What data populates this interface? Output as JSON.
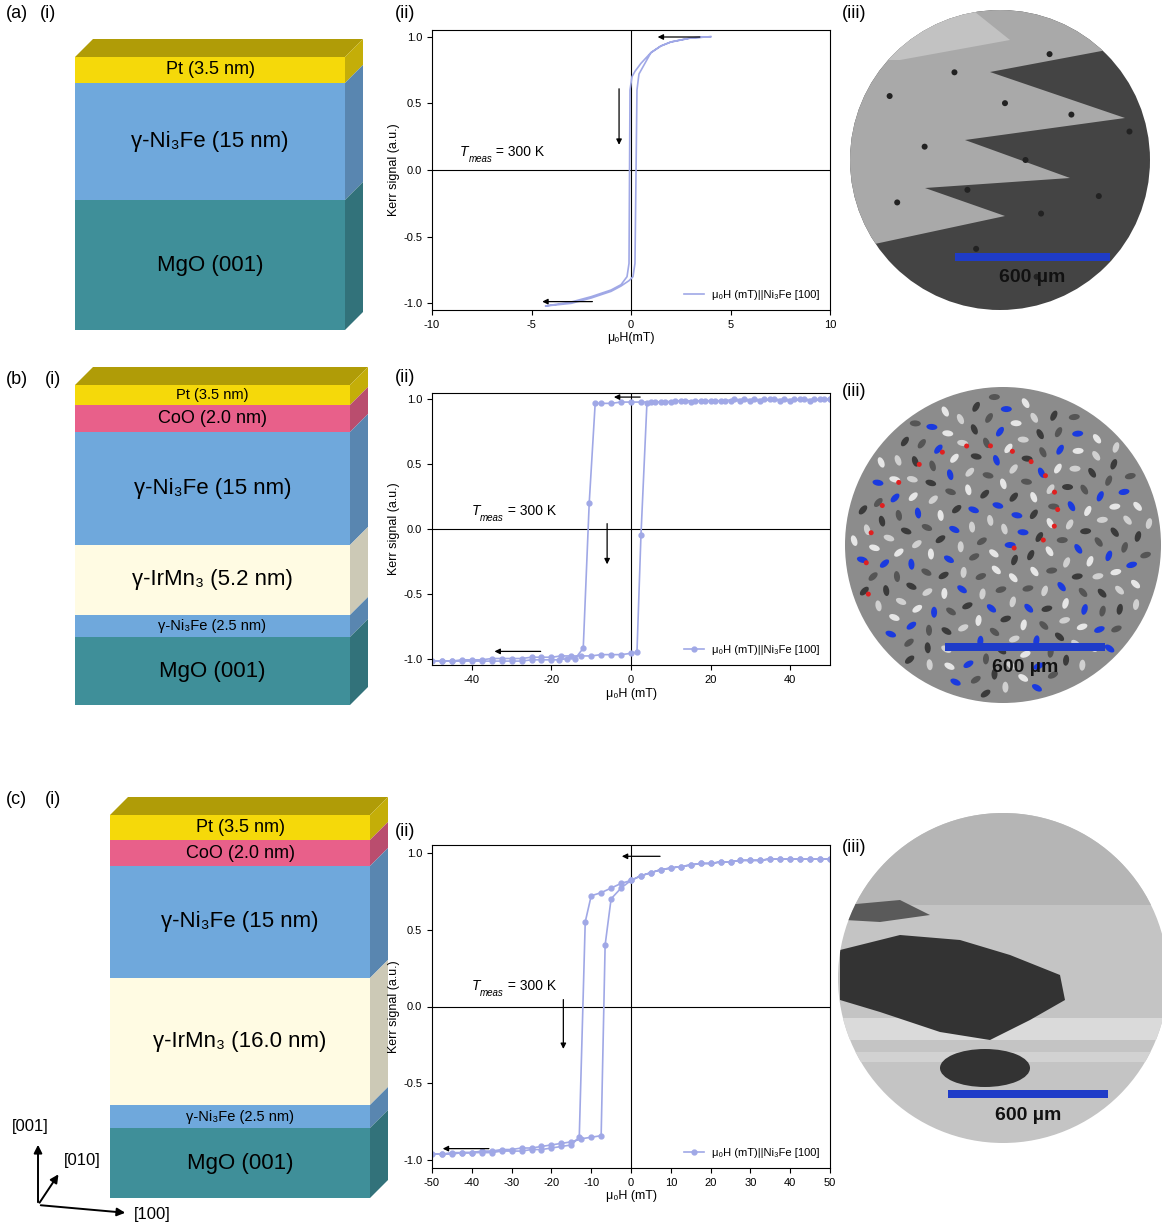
{
  "chart_data": [
    {
      "type": "line",
      "label": "(ii)",
      "x_label": "μ₀H(mT)",
      "y_label": "Kerr signal (a.u.)",
      "annotation": {
        "text": "T",
        "subscript": "meas",
        "rest": " = 300 K"
      },
      "xlim": [
        -10,
        10
      ],
      "ylim": [
        -1.05,
        1.05
      ],
      "xticks": [
        -10,
        -5,
        0,
        5,
        10
      ],
      "yticks": [
        -1.0,
        -0.5,
        0.0,
        0.5,
        1.0
      ],
      "marker": "none",
      "line_style": "solid",
      "legend": "lower right",
      "series": [
        {
          "name": "μ₀H (mT)||Ni₃Fe [100]",
          "color": "#a0a8e6",
          "x": [
            4.0,
            3.0,
            2.0,
            1.5,
            1.0,
            0.5,
            0.2,
            0.05,
            -0.05,
            -0.1,
            -0.2,
            -0.5,
            -1.0,
            -2.0,
            -3.0,
            -4.3,
            -3.0,
            -2.0,
            -1.0,
            -0.5,
            -0.1,
            0.1,
            0.2,
            0.3,
            0.4,
            0.7,
            1.0,
            1.5,
            2.0,
            3.0,
            4.0
          ],
          "values": [
            1.0,
            0.99,
            0.96,
            0.93,
            0.88,
            0.8,
            0.74,
            0.7,
            0.6,
            -0.7,
            -0.8,
            -0.86,
            -0.9,
            -0.95,
            -0.99,
            -1.02,
            -1.0,
            -0.96,
            -0.91,
            -0.87,
            -0.83,
            -0.8,
            -0.7,
            0.6,
            0.72,
            0.8,
            0.88,
            0.93,
            0.96,
            0.99,
            1.0
          ]
        }
      ]
    },
    {
      "type": "line",
      "label": "(ii)",
      "x_label": "μ₀H (mT)",
      "y_label": "Kerr signal (a.u.)",
      "annotation": {
        "text": "T",
        "subscript": "meas",
        "rest": " = 300 K"
      },
      "xlim": [
        -50,
        50
      ],
      "ylim": [
        -1.05,
        1.05
      ],
      "xticks": [
        -40,
        -20,
        0,
        20,
        40
      ],
      "yticks": [
        -1.0,
        -0.5,
        0.0,
        0.5,
        1.0
      ],
      "marker": "circle",
      "line_style": "solid",
      "legend": "lower right",
      "series": [
        {
          "name": "μ₀H (mT)||Ni₃Fe [100]",
          "color": "#a0a8e6",
          "x": [
            50,
            47.5,
            45,
            42.5,
            40,
            37.5,
            35,
            32.5,
            30,
            27.5,
            25,
            22.5,
            20,
            17.5,
            15,
            12.5,
            10,
            7.5,
            5,
            2.5,
            0,
            -2.5,
            -5,
            -7.5,
            -9,
            -10.5,
            -12,
            -14,
            -16,
            -18,
            -20,
            -22.5,
            -25,
            -27.5,
            -30,
            -32.5,
            -35,
            -37.5,
            -40,
            -42.5,
            -45,
            -47.5,
            -50,
            -47.5,
            -45,
            -42.5,
            -40,
            -37.5,
            -35,
            -32.5,
            -30,
            -27.5,
            -25,
            -22.5,
            -20,
            -17.5,
            -15,
            -12.5,
            -10,
            -7.5,
            -5,
            -2.5,
            0,
            1.5,
            2.5,
            4,
            6,
            8.5,
            11,
            13.5,
            16,
            18.5,
            21,
            23.5,
            26,
            28.5,
            31,
            33.5,
            36,
            38.5,
            41,
            43.5,
            46,
            48.5,
            50
          ],
          "values": [
            1.0,
            1.0,
            0.99,
            1.0,
            0.99,
            0.99,
            1.0,
            0.99,
            0.99,
            0.99,
            0.99,
            0.99,
            0.99,
            0.99,
            0.98,
            0.99,
            0.98,
            0.98,
            0.98,
            0.98,
            0.98,
            0.98,
            0.97,
            0.97,
            0.97,
            0.2,
            -0.92,
            -1.0,
            -1.0,
            -1.01,
            -1.01,
            -1.01,
            -1.01,
            -1.02,
            -1.02,
            -1.02,
            -1.02,
            -1.02,
            -1.02,
            -1.02,
            -1.02,
            -1.02,
            -1.02,
            -1.02,
            -1.02,
            -1.01,
            -1.01,
            -1.01,
            -1.0,
            -1.0,
            -1.0,
            -1.0,
            -0.99,
            -0.99,
            -0.99,
            -0.98,
            -0.98,
            -0.98,
            -0.98,
            -0.97,
            -0.97,
            -0.97,
            -0.96,
            -0.95,
            -0.05,
            0.97,
            0.98,
            0.98,
            0.99,
            0.99,
            0.99,
            0.99,
            0.99,
            0.99,
            1.0,
            1.0,
            1.0,
            1.0,
            1.0,
            1.0,
            1.0,
            1.0,
            1.0,
            1.0,
            1.0
          ]
        }
      ]
    },
    {
      "type": "line",
      "label": "(ii)",
      "x_label": "μ₀H (mT)",
      "y_label": "Kerr signal (a.u.)",
      "annotation": {
        "text": "T",
        "subscript": "meas",
        "rest": " = 300 K"
      },
      "xlim": [
        -50,
        50
      ],
      "ylim": [
        -1.05,
        1.05
      ],
      "xticks": [
        -50,
        -40,
        -30,
        -20,
        -10,
        0,
        10,
        20,
        30,
        40,
        50
      ],
      "yticks": [
        -1.0,
        -0.5,
        0.0,
        0.5,
        1.0
      ],
      "marker": "circle",
      "line_style": "solid",
      "legend": "lower right",
      "series": [
        {
          "name": "μ₀H (mT)||Ni₃Fe [100]",
          "color": "#a0a8e6",
          "x": [
            50,
            47.5,
            45,
            42.5,
            40,
            37.5,
            35,
            32.5,
            30,
            27.5,
            25,
            22.5,
            20,
            17.5,
            15,
            12.5,
            10,
            7.5,
            5,
            2.5,
            0,
            -2.5,
            -5,
            -7.5,
            -10,
            -11.5,
            -13,
            -15,
            -17.5,
            -20,
            -22.5,
            -25,
            -27.5,
            -30,
            -32.5,
            -35,
            -37.5,
            -40,
            -42.5,
            -45,
            -47.5,
            -50,
            -47.5,
            -45,
            -42.5,
            -40,
            -37.5,
            -35,
            -32.5,
            -30,
            -27.5,
            -25,
            -22.5,
            -20,
            -17.5,
            -15,
            -12.5,
            -10,
            -7.5,
            -6.5,
            -5,
            -2.5,
            0,
            2.5,
            5,
            7.5,
            10,
            12.5,
            15,
            17.5,
            20,
            22.5,
            25,
            27.5,
            30,
            32.5,
            35,
            37.5,
            40,
            42.5,
            45,
            47.5,
            50
          ],
          "values": [
            0.96,
            0.96,
            0.96,
            0.96,
            0.96,
            0.96,
            0.96,
            0.95,
            0.95,
            0.95,
            0.94,
            0.94,
            0.93,
            0.93,
            0.92,
            0.91,
            0.9,
            0.89,
            0.87,
            0.85,
            0.82,
            0.8,
            0.77,
            0.74,
            0.72,
            0.55,
            -0.85,
            -0.9,
            -0.91,
            -0.92,
            -0.93,
            -0.93,
            -0.94,
            -0.94,
            -0.94,
            -0.95,
            -0.95,
            -0.95,
            -0.95,
            -0.96,
            -0.96,
            -0.96,
            -0.96,
            -0.95,
            -0.95,
            -0.95,
            -0.94,
            -0.94,
            -0.93,
            -0.93,
            -0.92,
            -0.92,
            -0.91,
            -0.9,
            -0.89,
            -0.88,
            -0.86,
            -0.85,
            -0.84,
            0.4,
            0.7,
            0.77,
            0.82,
            0.85,
            0.87,
            0.89,
            0.9,
            0.91,
            0.92,
            0.93,
            0.93,
            0.94,
            0.94,
            0.95,
            0.95,
            0.95,
            0.96,
            0.96,
            0.96,
            0.96,
            0.96,
            0.96,
            0.96
          ]
        }
      ]
    }
  ],
  "diagram": {
    "panels": [
      {
        "label": "(a)",
        "stack_label": "(i)",
        "image_label": "(iii)",
        "scale_bar": "600 µm",
        "layers": [
          {
            "name": "Pt (3.5 nm)",
            "color": "#f5d90a"
          },
          {
            "name": "γ-Ni₃Fe (15 nm)",
            "color": "#6fa8dc"
          },
          {
            "name": "MgO (001)",
            "color": "#3f8f99"
          }
        ]
      },
      {
        "label": "(b)",
        "stack_label": "(i)",
        "image_label": "(iii)",
        "scale_bar": "600 µm",
        "layers": [
          {
            "name": "Pt (3.5 nm)",
            "color": "#f5d90a"
          },
          {
            "name": "CoO (2.0 nm)",
            "color": "#e8608a"
          },
          {
            "name": "γ-Ni₃Fe (15 nm)",
            "color": "#6fa8dc"
          },
          {
            "name": "γ-IrMn₃ (5.2 nm)",
            "color": "#fffbe3"
          },
          {
            "name": "γ-Ni₃Fe (2.5 nm)",
            "color": "#6fa8dc"
          },
          {
            "name": "MgO (001)",
            "color": "#3f8f99"
          }
        ]
      },
      {
        "label": "(c)",
        "stack_label": "(i)",
        "image_label": "(iii)",
        "scale_bar": "600 µm",
        "layers": [
          {
            "name": "Pt (3.5 nm)",
            "color": "#f5d90a"
          },
          {
            "name": "CoO (2.0 nm)",
            "color": "#e8608a"
          },
          {
            "name": "γ-Ni₃Fe (15 nm)",
            "color": "#6fa8dc"
          },
          {
            "name": "γ-IrMn₃ (16.0 nm)",
            "color": "#fffbe3"
          },
          {
            "name": "γ-Ni₃Fe (2.5 nm)",
            "color": "#6fa8dc"
          },
          {
            "name": "MgO (001)",
            "color": "#3f8f99"
          }
        ]
      }
    ],
    "axes": [
      "[001]",
      "[010]",
      "[100]"
    ]
  }
}
